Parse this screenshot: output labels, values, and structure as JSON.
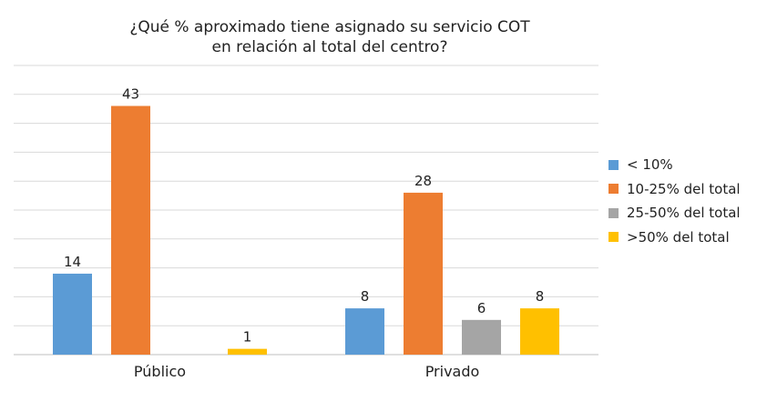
{
  "chart_data": {
    "type": "bar",
    "title_line1": "¿Qué % aproximado tiene asignado su servicio COT",
    "title_line2": "en relación al total del centro?",
    "categories": [
      "Público",
      "Privado"
    ],
    "series": [
      {
        "name": "< 10%",
        "color": "#5B9BD5",
        "values": [
          14,
          8
        ]
      },
      {
        "name": "10-25% del total",
        "color": "#ED7D31",
        "values": [
          43,
          28
        ]
      },
      {
        "name": "25-50% del total",
        "color": "#A5A5A5",
        "values": [
          null,
          6
        ]
      },
      {
        "name": ">50% del total",
        "color": "#FFC000",
        "values": [
          1,
          8
        ]
      }
    ],
    "ylim": [
      0,
      50
    ],
    "ytick_step": 5,
    "grid": true,
    "legend_position": "right",
    "xlabel": "",
    "ylabel": ""
  }
}
